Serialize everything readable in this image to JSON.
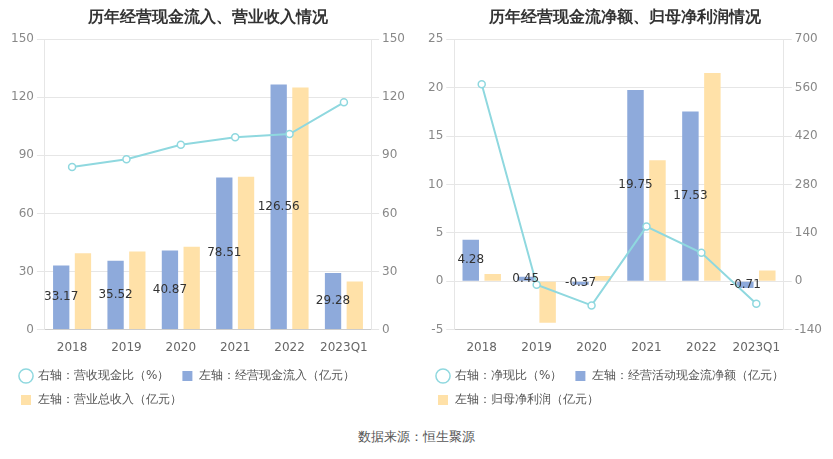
{
  "chart_data": [
    {
      "type": "bar",
      "title": "历年经营现金流入、营业收入情况",
      "categories": [
        "2018",
        "2019",
        "2020",
        "2021",
        "2022",
        "2023Q1"
      ],
      "ylim": [
        0,
        150
      ],
      "yticks": [
        0,
        30,
        60,
        90,
        120,
        150
      ],
      "y2lim": [
        0,
        150
      ],
      "y2ticks": [
        0,
        30,
        60,
        90,
        120,
        150
      ],
      "grid": true,
      "legend": "bottom",
      "series": [
        {
          "name": "左轴：经营现金流入（亿元）",
          "color": "#8eaadb",
          "values": [
            33.17,
            35.52,
            40.87,
            78.51,
            126.56,
            29.28
          ],
          "data_labels": true
        },
        {
          "name": "左轴：营业总收入（亿元）",
          "color": "#ffe1a8",
          "values": [
            39.5,
            40.4,
            42.8,
            79,
            125,
            24.9
          ]
        },
        {
          "name": "右轴：营收现金比（%）",
          "color": "#8fd8df",
          "type": "line",
          "axis": "y2",
          "marker": "circle",
          "values": [
            84,
            88,
            95.5,
            99.4,
            101,
            117.4
          ]
        }
      ]
    },
    {
      "type": "bar",
      "title": "历年经营现金流净额、归母净利润情况",
      "categories": [
        "2018",
        "2019",
        "2020",
        "2021",
        "2022",
        "2023Q1"
      ],
      "ylim": [
        -5,
        25
      ],
      "yticks": [
        -5,
        0,
        5,
        10,
        15,
        20,
        25
      ],
      "y2lim": [
        -140,
        700
      ],
      "y2ticks": [
        -140,
        0,
        140,
        280,
        420,
        560,
        700
      ],
      "grid": true,
      "legend": "bottom",
      "series": [
        {
          "name": "左轴：经营活动现金流净额（亿元）",
          "color": "#8eaadb",
          "values": [
            4.28,
            0.45,
            -0.37,
            19.75,
            17.53,
            -0.71
          ],
          "data_labels": true
        },
        {
          "name": "左轴：归母净利润（亿元）",
          "color": "#ffe1a8",
          "values": [
            0.75,
            -4.3,
            0.53,
            12.5,
            21.5,
            1.1
          ]
        },
        {
          "name": "右轴：净现比（%）",
          "color": "#8fd8df",
          "type": "line",
          "axis": "y2",
          "marker": "circle",
          "values": [
            570,
            -10,
            -70,
            158,
            82,
            -65
          ]
        }
      ]
    }
  ],
  "source": "数据来源：恒生聚源"
}
